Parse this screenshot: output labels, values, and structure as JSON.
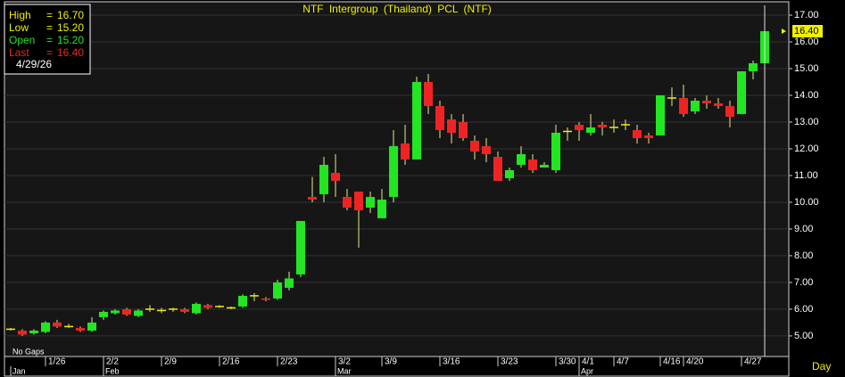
{
  "chart_data": {
    "type": "candlestick",
    "title": "NTF Intergroup (Thailand) PCL (NTF)",
    "categories": [
      null,
      null,
      null,
      "1/26",
      null,
      null,
      null,
      null,
      "2/2",
      null,
      null,
      null,
      null,
      "2/9",
      null,
      null,
      null,
      null,
      "2/16",
      null,
      null,
      null,
      null,
      "2/23",
      null,
      null,
      null,
      null,
      "3/2",
      null,
      null,
      null,
      "3/9",
      null,
      null,
      null,
      null,
      "3/16",
      null,
      null,
      null,
      null,
      "3/23",
      null,
      null,
      null,
      null,
      "3/30",
      null,
      "4/1",
      null,
      null,
      "4/7",
      null,
      null,
      null,
      "4/16",
      null,
      "4/20",
      null,
      null,
      null,
      null,
      "4/27",
      null,
      null
    ],
    "month_row": [
      "Jan",
      null,
      null,
      null,
      null,
      null,
      null,
      null,
      "Feb",
      null,
      null,
      null,
      null,
      null,
      null,
      null,
      null,
      null,
      null,
      null,
      null,
      null,
      null,
      null,
      null,
      null,
      null,
      null,
      "Mar",
      null,
      null,
      null,
      null,
      null,
      null,
      null,
      null,
      null,
      null,
      null,
      null,
      null,
      null,
      null,
      null,
      null,
      null,
      null,
      null,
      "Apr",
      null,
      null,
      null,
      null,
      null,
      null,
      null,
      null,
      null,
      null,
      null,
      null,
      null,
      null,
      null,
      null
    ],
    "open": [
      5.25,
      5.2,
      5.1,
      5.15,
      5.5,
      5.35,
      5.3,
      5.2,
      5.7,
      5.85,
      6.0,
      5.75,
      6.0,
      5.95,
      6.0,
      6.0,
      5.85,
      6.15,
      6.1,
      6.05,
      6.1,
      6.5,
      6.4,
      6.4,
      6.8,
      7.3,
      10.2,
      10.3,
      11.1,
      10.2,
      10.4,
      9.8,
      9.4,
      10.2,
      12.2,
      11.6,
      14.5,
      13.6,
      13.1,
      13.0,
      12.3,
      12.1,
      11.7,
      10.9,
      11.4,
      11.6,
      11.3,
      11.2,
      12.65,
      12.9,
      12.6,
      12.9,
      12.8,
      12.9,
      12.7,
      12.5,
      12.5,
      13.9,
      13.9,
      13.4,
      13.8,
      13.7,
      13.6,
      13.3,
      14.9,
      15.2
    ],
    "high": [
      5.3,
      5.25,
      5.25,
      5.55,
      5.6,
      5.45,
      5.35,
      5.7,
      5.95,
      6.0,
      6.05,
      6.0,
      6.15,
      6.05,
      6.05,
      6.05,
      6.25,
      6.2,
      6.15,
      6.1,
      6.55,
      6.6,
      6.45,
      7.1,
      7.4,
      9.3,
      10.95,
      11.7,
      11.8,
      10.5,
      10.4,
      10.4,
      10.5,
      12.7,
      12.9,
      14.7,
      14.8,
      13.8,
      13.3,
      13.3,
      12.5,
      12.4,
      11.9,
      11.3,
      12.1,
      11.8,
      11.5,
      12.9,
      12.8,
      13.0,
      13.3,
      13.0,
      13.1,
      13.1,
      12.9,
      12.6,
      14.0,
      14.3,
      14.4,
      13.9,
      14.0,
      13.9,
      13.8,
      14.9,
      15.3,
      16.7
    ],
    "low": [
      5.2,
      5.0,
      5.05,
      5.1,
      5.3,
      5.3,
      5.15,
      5.15,
      5.6,
      5.8,
      5.75,
      5.7,
      5.9,
      5.85,
      5.9,
      5.85,
      5.8,
      6.0,
      6.05,
      6.0,
      6.05,
      6.3,
      6.3,
      6.35,
      6.7,
      7.2,
      10.0,
      10.0,
      10.2,
      9.7,
      8.3,
      9.6,
      9.4,
      10.0,
      11.4,
      11.6,
      13.3,
      12.4,
      12.2,
      12.3,
      11.6,
      11.5,
      10.8,
      10.8,
      11.3,
      11.1,
      11.3,
      11.1,
      12.3,
      12.3,
      12.5,
      12.5,
      12.6,
      12.7,
      12.2,
      12.2,
      12.5,
      13.6,
      13.2,
      13.3,
      13.5,
      13.5,
      12.8,
      13.3,
      14.6,
      15.2
    ],
    "close": [
      5.25,
      5.05,
      5.2,
      5.5,
      5.35,
      5.35,
      5.2,
      5.5,
      5.9,
      5.95,
      5.8,
      5.95,
      6.0,
      5.95,
      6.0,
      5.9,
      6.2,
      6.05,
      6.1,
      6.05,
      6.5,
      6.5,
      6.35,
      7.0,
      7.15,
      9.3,
      10.1,
      11.4,
      10.8,
      9.8,
      9.7,
      10.2,
      10.1,
      12.1,
      11.6,
      14.5,
      13.6,
      12.7,
      12.6,
      12.4,
      11.9,
      11.8,
      10.8,
      11.2,
      11.8,
      11.2,
      11.4,
      12.6,
      12.65,
      12.7,
      12.8,
      12.8,
      12.8,
      12.9,
      12.4,
      12.4,
      14.0,
      13.9,
      13.3,
      13.8,
      13.7,
      13.6,
      13.2,
      14.9,
      15.2,
      16.4
    ],
    "up_color": "#22e622",
    "down_color": "#ee2424",
    "doji_color": "#f0f000",
    "wick_color": "#e8e890",
    "ylim": [
      4.23,
      17.5
    ],
    "yticks": [
      {
        "value": 5,
        "label": "5.00"
      },
      {
        "value": 6,
        "label": "6.00"
      },
      {
        "value": 7,
        "label": "7.00"
      },
      {
        "value": 8,
        "label": "8.00"
      },
      {
        "value": 9,
        "label": "9.00"
      },
      {
        "value": 10,
        "label": "10.00"
      },
      {
        "value": 11,
        "label": "11.00"
      },
      {
        "value": 12,
        "label": "12.00"
      },
      {
        "value": 13,
        "label": "13.00"
      },
      {
        "value": 14,
        "label": "14.00"
      },
      {
        "value": 15,
        "label": "15.00"
      },
      {
        "value": 16,
        "label": "16.00"
      },
      {
        "value": 17,
        "label": "17.00"
      }
    ],
    "grid": true,
    "last_marker": {
      "value": 16.4,
      "label": "16.40"
    },
    "info": {
      "rows": [
        {
          "label": "High",
          "sep": "=",
          "value": "16.70",
          "color": "#f0f000"
        },
        {
          "label": "Low",
          "sep": "=",
          "value": "15.20",
          "color": "#f0f000"
        },
        {
          "label": "Open",
          "sep": "=",
          "value": "15.20",
          "color": "#22e622"
        },
        {
          "label": "Last",
          "sep": "=",
          "value": "16.40",
          "color": "#ee2424"
        }
      ],
      "date": "4/29/26"
    },
    "gap_note": "No Gaps",
    "period": "Day"
  }
}
